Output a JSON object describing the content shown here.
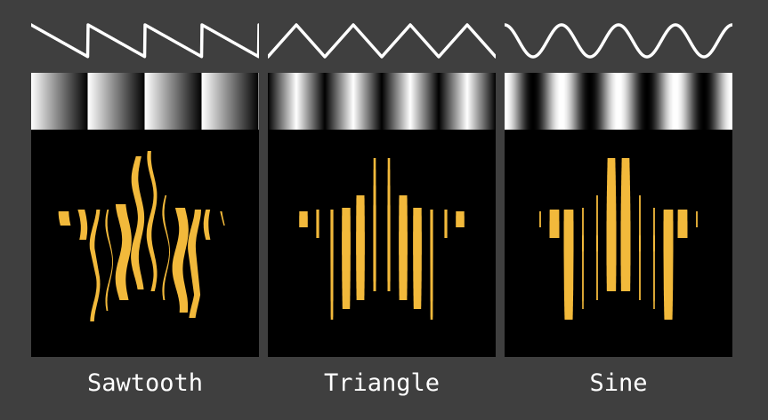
{
  "panels": [
    {
      "label": "Sawtooth",
      "wave": "sawtooth"
    },
    {
      "label": "Triangle",
      "wave": "triangle"
    },
    {
      "label": "Sine",
      "wave": "sine"
    }
  ],
  "colors": {
    "background": "#3f3f3f",
    "stroke": "#ffffff",
    "star_fill": "#f2b93b",
    "panel_bg": "#000000"
  }
}
